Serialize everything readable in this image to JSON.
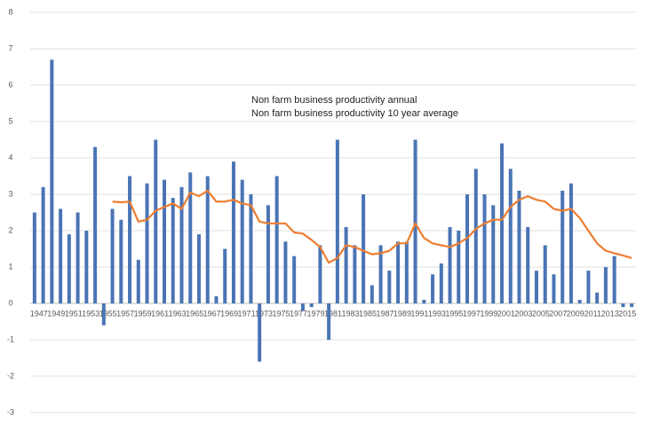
{
  "chart_data": {
    "type": "bar-line",
    "categories": [
      "1947",
      null,
      "1949",
      null,
      "1951",
      null,
      "1953",
      null,
      "1955",
      null,
      "1957",
      null,
      "1959",
      null,
      "1961",
      null,
      "1963",
      null,
      "1965",
      null,
      "1967",
      null,
      "1969",
      null,
      "1971",
      null,
      "1973",
      null,
      "1975",
      null,
      "1977",
      null,
      "1979",
      null,
      "1981",
      null,
      "1983",
      null,
      "1985",
      null,
      "1987",
      null,
      "1989",
      null,
      "1991",
      null,
      "1993",
      null,
      "1995",
      null,
      "1997",
      null,
      "1999",
      null,
      "2001",
      null,
      "2003",
      null,
      "2005",
      null,
      "2007",
      null,
      "2009",
      null,
      "2011",
      null,
      "2013",
      null,
      "2015",
      null
    ],
    "series": [
      {
        "name": "Non farm business productivity annual",
        "type": "bar",
        "color": "#4a74b5",
        "values": [
          2.5,
          3.2,
          6.7,
          2.6,
          1.9,
          2.5,
          2.0,
          4.3,
          -0.6,
          2.6,
          2.3,
          3.5,
          1.2,
          3.3,
          4.5,
          3.4,
          2.9,
          3.2,
          3.6,
          1.9,
          3.5,
          0.2,
          1.5,
          3.9,
          3.4,
          3.0,
          -1.6,
          2.7,
          3.5,
          1.7,
          1.3,
          -0.2,
          -0.1,
          1.6,
          -1.0,
          4.5,
          2.1,
          1.6,
          3.0,
          0.5,
          1.6,
          0.9,
          1.7,
          1.7,
          4.5,
          0.1,
          0.8,
          1.1,
          2.1,
          2.0,
          3.0,
          3.7,
          3.0,
          2.7,
          4.4,
          3.7,
          3.1,
          2.1,
          0.9,
          1.6,
          0.8,
          3.1,
          3.3,
          0.1,
          0.9,
          0.3,
          1.0,
          1.3,
          -0.1,
          -0.1
        ]
      },
      {
        "name": "Non farm business productivity 10 year average",
        "type": "line",
        "color": "#ed7d31",
        "values": [
          null,
          null,
          null,
          null,
          null,
          null,
          null,
          null,
          null,
          2.8,
          2.78,
          2.8,
          2.25,
          2.3,
          2.55,
          2.65,
          2.75,
          2.6,
          3.05,
          2.95,
          3.1,
          2.8,
          2.8,
          2.85,
          2.75,
          2.7,
          2.25,
          2.2,
          2.2,
          2.2,
          1.95,
          1.92,
          1.75,
          1.55,
          1.12,
          1.25,
          1.6,
          1.55,
          1.45,
          1.35,
          1.38,
          1.45,
          1.65,
          1.65,
          2.2,
          1.8,
          1.65,
          1.6,
          1.55,
          1.65,
          1.8,
          2.05,
          2.2,
          2.3,
          2.3,
          2.65,
          2.85,
          2.95,
          2.85,
          2.8,
          2.6,
          2.55,
          2.6,
          2.35,
          2.0,
          1.65,
          1.45,
          1.38,
          1.32,
          1.25
        ]
      }
    ],
    "ylim": [
      -3,
      8
    ],
    "yticks": [
      -3,
      -2,
      -1,
      0,
      1,
      2,
      3,
      4,
      5,
      6,
      7,
      8
    ],
    "grid": true
  }
}
